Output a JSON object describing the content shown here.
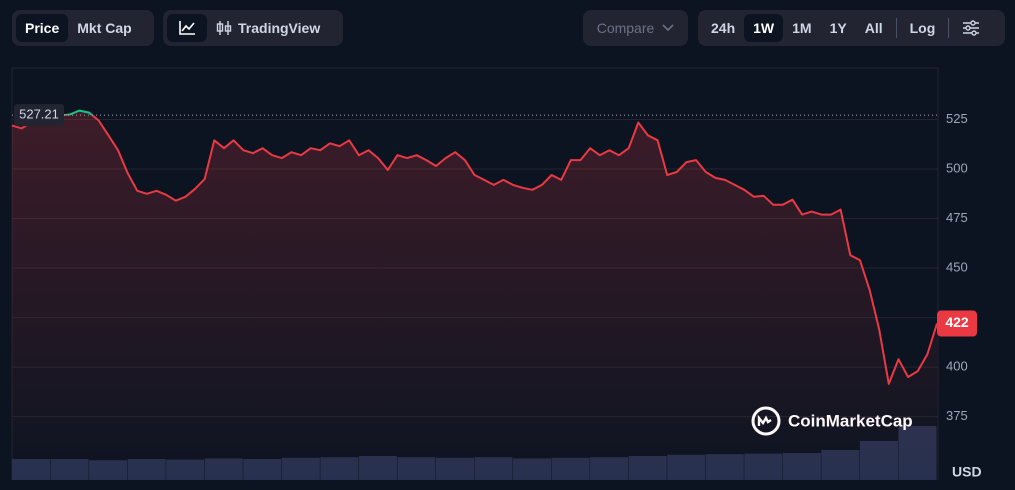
{
  "toolbar": {
    "metric": [
      "Price",
      "Mkt Cap"
    ],
    "tradingview": "TradingView",
    "compare": "Compare",
    "ranges": [
      "24h",
      "1W",
      "1M",
      "1Y",
      "All"
    ],
    "log": "Log"
  },
  "chart_data": {
    "type": "line",
    "values": [
      522,
      520.5,
      523.5,
      527,
      526,
      527,
      527.5,
      529.5,
      528.5,
      524.5,
      517,
      509.5,
      498,
      489,
      487.5,
      489,
      487,
      484,
      486,
      490,
      495,
      514.5,
      510.5,
      514.5,
      509.5,
      508,
      510.5,
      507,
      505.5,
      508.5,
      507,
      510.5,
      509.5,
      513,
      511.5,
      514.5,
      507,
      509.5,
      505.5,
      499.5,
      507,
      505.5,
      507,
      504.5,
      501.5,
      505.5,
      508.5,
      504.5,
      497,
      494.5,
      492,
      494.5,
      492,
      490.5,
      489.5,
      492,
      497,
      494.5,
      504.5,
      504.5,
      510.5,
      507,
      509.5,
      507,
      510.5,
      523.5,
      517,
      514.5,
      497,
      498.5,
      503.5,
      504.5,
      498.5,
      495.5,
      494.5,
      492,
      489.5,
      486,
      486.5,
      482,
      482,
      484.5,
      477,
      478.5,
      477,
      477,
      479.5,
      456.5,
      454,
      439,
      419,
      391.5,
      404,
      395,
      398,
      406.5,
      422
    ],
    "color": "#ea3943",
    "color_above": "#16c784",
    "reference": 527.21,
    "ylim": [
      343,
      551
    ],
    "yticks": [
      375,
      400,
      425,
      450,
      475,
      500,
      525
    ],
    "grid": true,
    "unit": "USD",
    "watermark": "CoinMarketCap",
    "volume": {
      "values": [
        35,
        35,
        33,
        35,
        34,
        36,
        35,
        37,
        38,
        40,
        38,
        37,
        38,
        36,
        37,
        38,
        40,
        42,
        43,
        44,
        45,
        50,
        65,
        90
      ],
      "ylim": [
        0,
        100
      ],
      "color": "#27314f"
    }
  }
}
